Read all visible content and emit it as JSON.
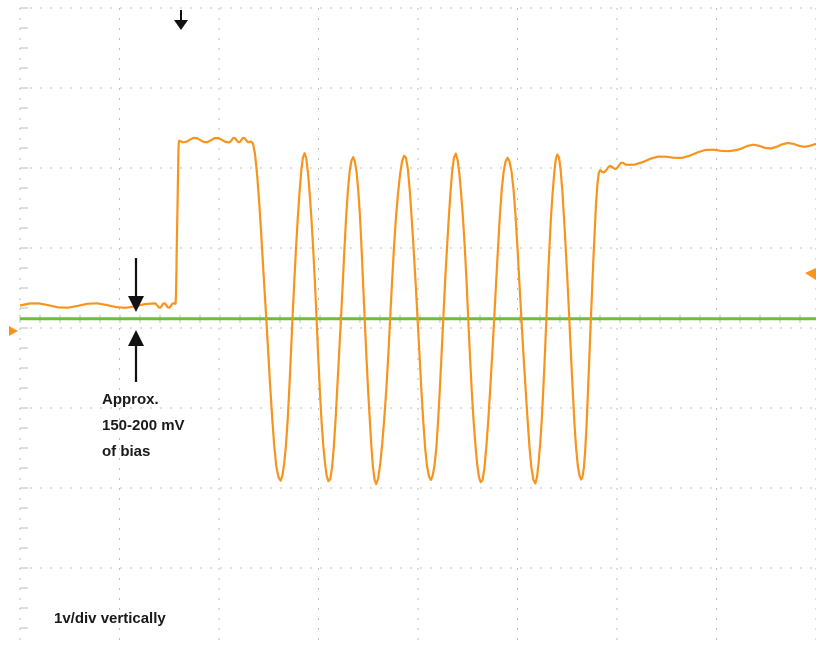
{
  "chart_data": {
    "type": "line",
    "title": "",
    "xlabel": "",
    "ylabel": "",
    "grid": true,
    "ylim": [
      -4.2,
      4.0
    ],
    "series": [
      {
        "color": "#f7941d",
        "points": [
          [
            0.0,
            0.17
          ],
          [
            1.35,
            0.17
          ],
          [
            1.56,
            0.17
          ],
          [
            1.6,
            2.3
          ],
          [
            2.1,
            2.3
          ],
          [
            2.32,
            2.3
          ],
          [
            2.62,
            -2.1
          ],
          [
            2.86,
            2.1
          ],
          [
            3.1,
            -2.1
          ],
          [
            3.35,
            2.1
          ],
          [
            3.58,
            -2.1
          ],
          [
            3.86,
            2.1
          ],
          [
            4.13,
            -2.1
          ],
          [
            4.38,
            2.1
          ],
          [
            4.63,
            -2.1
          ],
          [
            4.9,
            2.1
          ],
          [
            5.18,
            -2.1
          ],
          [
            5.4,
            2.1
          ],
          [
            5.64,
            -2.1
          ],
          [
            5.83,
            1.9
          ],
          [
            6.1,
            2.0
          ],
          [
            7.2,
            2.2
          ],
          [
            8.0,
            2.25
          ]
        ]
      },
      {
        "color": "#6cbf3a",
        "points": [
          [
            0.0,
            0.0
          ],
          [
            8.0,
            0.0
          ]
        ]
      }
    ]
  },
  "annotations": {
    "bias_line1": "Approx.",
    "bias_line2": "150-200 mV",
    "bias_line3": "of bias",
    "scale": "1v/div vertically"
  },
  "colors": {
    "grid": "#bdbdbd",
    "signal": "#f7941d",
    "baseline": "#6cbf3a",
    "marker": "#f7941d",
    "arrow": "#111111"
  }
}
